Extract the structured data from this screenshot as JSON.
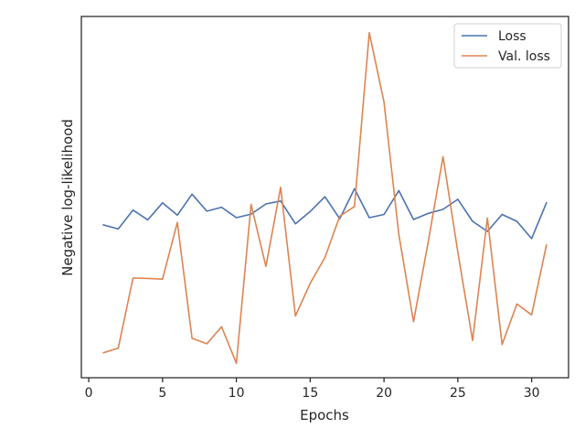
{
  "chart_data": {
    "type": "line",
    "title": "",
    "xlabel": "Epochs",
    "ylabel": "Negative log-likelihood",
    "xlim": [
      -0.5,
      32.5
    ],
    "ylim": [
      0,
      1
    ],
    "x_ticks": [
      0,
      5,
      10,
      15,
      20,
      25,
      30
    ],
    "y_ticks_shown": false,
    "grid": false,
    "legend_position": "top-right",
    "x": [
      1,
      2,
      3,
      4,
      5,
      6,
      7,
      8,
      9,
      10,
      11,
      12,
      13,
      14,
      15,
      16,
      17,
      18,
      19,
      20,
      21,
      22,
      23,
      24,
      25,
      26,
      27,
      28,
      29,
      30,
      31
    ],
    "series": [
      {
        "name": "Loss",
        "color": "#4c72b0",
        "values": [
          0.423,
          0.412,
          0.464,
          0.437,
          0.484,
          0.45,
          0.508,
          0.461,
          0.472,
          0.443,
          0.453,
          0.481,
          0.489,
          0.426,
          0.46,
          0.501,
          0.44,
          0.523,
          0.443,
          0.452,
          0.518,
          0.438,
          0.455,
          0.466,
          0.494,
          0.433,
          0.405,
          0.452,
          0.433,
          0.385,
          0.484
        ]
      },
      {
        "name": "Val. loss",
        "color": "#dd8452",
        "values": [
          0.069,
          0.082,
          0.276,
          0.275,
          0.273,
          0.43,
          0.109,
          0.094,
          0.141,
          0.04,
          0.48,
          0.308,
          0.527,
          0.171,
          0.261,
          0.333,
          0.447,
          0.474,
          0.955,
          0.763,
          0.397,
          0.155,
          0.378,
          0.612,
          0.347,
          0.103,
          0.442,
          0.092,
          0.204,
          0.174,
          0.367
        ]
      }
    ]
  }
}
